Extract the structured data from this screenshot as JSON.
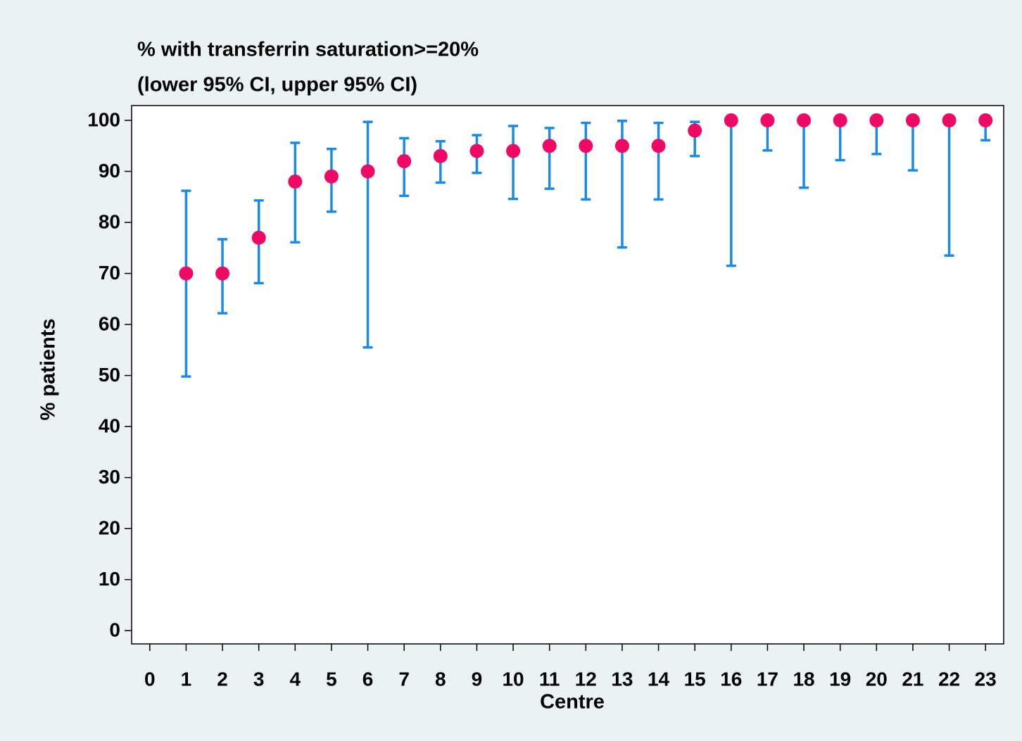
{
  "chart_data": {
    "type": "errorbar",
    "title": "% with transferrin saturation>=20%",
    "subtitle": "(lower 95% CI, upper 95% CI)",
    "x_label": "Centre",
    "y_label": "% patients",
    "x": [
      1,
      2,
      3,
      4,
      5,
      6,
      7,
      8,
      9,
      10,
      11,
      12,
      13,
      14,
      15,
      16,
      17,
      18,
      19,
      20,
      21,
      22,
      23
    ],
    "values": [
      70,
      70,
      77,
      88,
      89,
      90,
      92,
      93,
      94,
      94,
      95,
      95,
      95,
      95,
      98,
      100,
      100,
      100,
      100,
      100,
      100,
      100,
      100
    ],
    "lower": [
      49.8,
      62.2,
      68.1,
      76.1,
      82.1,
      55.5,
      85.2,
      87.8,
      89.7,
      84.6,
      86.6,
      84.5,
      75.1,
      84.5,
      93.0,
      71.5,
      94.1,
      86.8,
      92.2,
      93.4,
      90.2,
      73.5,
      96.1
    ],
    "upper": [
      86.2,
      76.7,
      84.3,
      95.6,
      94.4,
      99.7,
      96.5,
      95.9,
      97.1,
      98.9,
      98.5,
      99.5,
      99.9,
      99.5,
      99.7,
      100,
      100,
      100,
      100,
      100,
      100,
      100,
      100
    ],
    "marker_color": "#ee0a64",
    "bar_color": "#1a8ae6",
    "xlim": [
      -0.5,
      23.5
    ],
    "ylim": [
      -2.6,
      102.9
    ],
    "xticks": [
      0,
      1,
      2,
      3,
      4,
      5,
      6,
      7,
      8,
      9,
      10,
      11,
      12,
      13,
      14,
      15,
      16,
      17,
      18,
      19,
      20,
      21,
      22,
      23
    ],
    "yticks": [
      0,
      10,
      20,
      30,
      40,
      50,
      60,
      70,
      80,
      90,
      100
    ]
  }
}
